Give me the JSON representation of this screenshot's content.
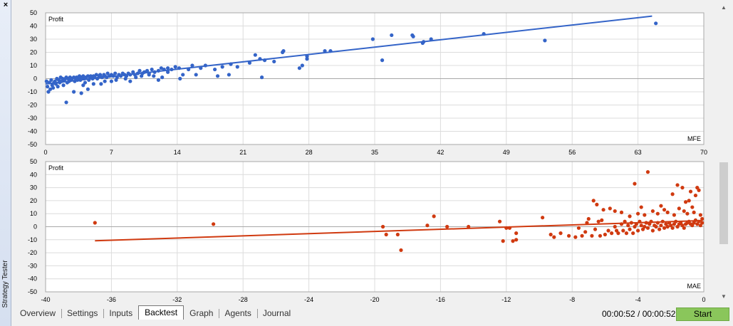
{
  "window": {
    "side_label": "Strategy Tester",
    "close_glyph": "×"
  },
  "tabs": [
    "Overview",
    "Settings",
    "Inputs",
    "Backtest",
    "Graph",
    "Agents",
    "Journal"
  ],
  "active_tab": "Backtest",
  "timer": "00:00:52 / 00:00:52",
  "start_label": "Start",
  "colors": {
    "mfe": "#3464c8",
    "mae": "#d03a10",
    "start": "#8ac65b"
  },
  "chart_data": [
    {
      "type": "scatter",
      "ylabel": "Profit",
      "xlabel": "MFE",
      "xlim": [
        0,
        70
      ],
      "ylim": [
        -50,
        50
      ],
      "xticks": [
        0,
        7,
        14,
        21,
        28,
        35,
        42,
        49,
        56,
        63,
        70
      ],
      "yticks": [
        50,
        40,
        30,
        20,
        10,
        0,
        -10,
        -20,
        -30,
        -40,
        -50
      ],
      "grid": true,
      "trend": [
        [
          0,
          -4
        ],
        [
          64.5,
          47.5
        ]
      ],
      "points": [
        [
          0.1,
          -2
        ],
        [
          0.2,
          -6
        ],
        [
          0.3,
          -10
        ],
        [
          0.4,
          -3
        ],
        [
          0.5,
          -8
        ],
        [
          0.6,
          -1
        ],
        [
          0.7,
          -5
        ],
        [
          0.8,
          -7
        ],
        [
          0.9,
          -3
        ],
        [
          1.0,
          -2
        ],
        [
          1.1,
          -4
        ],
        [
          1.2,
          0
        ],
        [
          1.3,
          -6
        ],
        [
          1.4,
          -1
        ],
        [
          1.5,
          -3
        ],
        [
          1.6,
          1
        ],
        [
          1.7,
          -2
        ],
        [
          1.8,
          0
        ],
        [
          1.9,
          -5
        ],
        [
          2.0,
          -1
        ],
        [
          2.1,
          0
        ],
        [
          2.2,
          1
        ],
        [
          2.3,
          -3
        ],
        [
          2.4,
          0
        ],
        [
          2.5,
          -2
        ],
        [
          2.6,
          1
        ],
        [
          2.7,
          -1
        ],
        [
          2.8,
          0
        ],
        [
          3.0,
          1
        ],
        [
          3.1,
          -2
        ],
        [
          3.2,
          0
        ],
        [
          3.3,
          1
        ],
        [
          3.4,
          -1
        ],
        [
          3.5,
          0
        ],
        [
          3.6,
          2
        ],
        [
          3.7,
          -1
        ],
        [
          3.8,
          1
        ],
        [
          3.9,
          0
        ],
        [
          4.0,
          2
        ],
        [
          4.1,
          0
        ],
        [
          4.2,
          -3
        ],
        [
          4.3,
          1
        ],
        [
          4.5,
          2
        ],
        [
          4.6,
          -1
        ],
        [
          4.7,
          1
        ],
        [
          4.8,
          2
        ],
        [
          5.0,
          0
        ],
        [
          5.1,
          2
        ],
        [
          5.2,
          1
        ],
        [
          5.4,
          3
        ],
        [
          5.5,
          0
        ],
        [
          5.7,
          2
        ],
        [
          5.8,
          3
        ],
        [
          6.0,
          1
        ],
        [
          6.2,
          3
        ],
        [
          6.3,
          2
        ],
        [
          6.5,
          1
        ],
        [
          6.6,
          4
        ],
        [
          6.8,
          2
        ],
        [
          7.0,
          3
        ],
        [
          7.2,
          2
        ],
        [
          7.4,
          4
        ],
        [
          7.6,
          1
        ],
        [
          7.8,
          3
        ],
        [
          8.0,
          2
        ],
        [
          8.2,
          4
        ],
        [
          8.4,
          3
        ],
        [
          8.6,
          2
        ],
        [
          8.8,
          4
        ],
        [
          9.0,
          3
        ],
        [
          9.3,
          5
        ],
        [
          9.5,
          3
        ],
        [
          9.8,
          4
        ],
        [
          10.0,
          6
        ],
        [
          10.3,
          4
        ],
        [
          10.5,
          5
        ],
        [
          10.8,
          6
        ],
        [
          11.0,
          4
        ],
        [
          11.3,
          7
        ],
        [
          11.6,
          5
        ],
        [
          12.0,
          6
        ],
        [
          12.3,
          8
        ],
        [
          12.6,
          7
        ],
        [
          13.0,
          8
        ],
        [
          13.4,
          7
        ],
        [
          13.8,
          9
        ],
        [
          14.2,
          8
        ],
        [
          2.2,
          -18
        ],
        [
          3.0,
          -10
        ],
        [
          3.8,
          -11
        ],
        [
          4.0,
          -5
        ],
        [
          4.5,
          -8
        ],
        [
          5.1,
          -4
        ],
        [
          5.9,
          -4
        ],
        [
          6.3,
          -2
        ],
        [
          7.0,
          -2
        ],
        [
          7.5,
          -1
        ],
        [
          8.5,
          0
        ],
        [
          9.0,
          -2
        ],
        [
          9.6,
          1
        ],
        [
          10.2,
          2
        ],
        [
          11.0,
          3
        ],
        [
          11.5,
          2
        ],
        [
          12.0,
          -1
        ],
        [
          12.4,
          1
        ],
        [
          13.0,
          5
        ],
        [
          14.3,
          0
        ],
        [
          14.6,
          3
        ],
        [
          15.2,
          7
        ],
        [
          15.6,
          10
        ],
        [
          16.0,
          3
        ],
        [
          16.5,
          8
        ],
        [
          17.0,
          10
        ],
        [
          18.0,
          7
        ],
        [
          18.3,
          2
        ],
        [
          18.8,
          9
        ],
        [
          19.5,
          3
        ],
        [
          19.7,
          11
        ],
        [
          20.4,
          9
        ],
        [
          21.7,
          12
        ],
        [
          22.3,
          18
        ],
        [
          22.8,
          15
        ],
        [
          23.3,
          14
        ],
        [
          23.0,
          1
        ],
        [
          24.3,
          13
        ],
        [
          25.2,
          20
        ],
        [
          25.3,
          21
        ],
        [
          27.0,
          8
        ],
        [
          27.3,
          10
        ],
        [
          27.8,
          17
        ],
        [
          27.8,
          15
        ],
        [
          29.7,
          21
        ],
        [
          30.3,
          21
        ],
        [
          34.8,
          30
        ],
        [
          35.8,
          14
        ],
        [
          36.8,
          33
        ],
        [
          39.0,
          33
        ],
        [
          39.1,
          32
        ],
        [
          40.1,
          27
        ],
        [
          40.2,
          28
        ],
        [
          41.0,
          30
        ],
        [
          46.6,
          34
        ],
        [
          53.1,
          29
        ],
        [
          64.9,
          42
        ]
      ]
    },
    {
      "type": "scatter",
      "ylabel": "Profit",
      "xlabel": "MAE",
      "xlim": [
        -40,
        0
      ],
      "ylim": [
        -50,
        50
      ],
      "xticks": [
        -40,
        -36,
        -32,
        -28,
        -24,
        -20,
        -16,
        -12,
        -8,
        -4,
        0
      ],
      "yticks": [
        50,
        40,
        30,
        20,
        10,
        0,
        -10,
        -20,
        -30,
        -40,
        -50
      ],
      "grid": true,
      "trend": [
        [
          -37,
          -10.8
        ],
        [
          -0.1,
          4.7
        ]
      ],
      "points": [
        [
          -37.0,
          3
        ],
        [
          -29.8,
          2
        ],
        [
          -19.5,
          0
        ],
        [
          -19.3,
          -6
        ],
        [
          -18.6,
          -6
        ],
        [
          -18.4,
          -18
        ],
        [
          -16.8,
          1
        ],
        [
          -16.4,
          8
        ],
        [
          -15.6,
          0
        ],
        [
          -14.3,
          0
        ],
        [
          -12.4,
          4
        ],
        [
          -12.2,
          -11
        ],
        [
          -12.0,
          -1
        ],
        [
          -11.8,
          -1
        ],
        [
          -11.6,
          -11
        ],
        [
          -11.4,
          -10
        ],
        [
          -11.4,
          -5
        ],
        [
          -9.8,
          7
        ],
        [
          -9.3,
          -6
        ],
        [
          -9.1,
          -8
        ],
        [
          -8.7,
          -5
        ],
        [
          -8.2,
          -7
        ],
        [
          -7.8,
          -8
        ],
        [
          -7.6,
          -1
        ],
        [
          -7.4,
          -7
        ],
        [
          -7.2,
          -4
        ],
        [
          -7.1,
          3
        ],
        [
          -7.0,
          6
        ],
        [
          -6.8,
          -7
        ],
        [
          -6.6,
          -2
        ],
        [
          -6.4,
          4
        ],
        [
          -6.3,
          -7
        ],
        [
          -6.2,
          5
        ],
        [
          -6.0,
          -6
        ],
        [
          -5.8,
          -3
        ],
        [
          -5.6,
          -5
        ],
        [
          -5.4,
          0
        ],
        [
          -5.3,
          -3
        ],
        [
          -5.2,
          -5
        ],
        [
          -5.0,
          2
        ],
        [
          -4.9,
          -3
        ],
        [
          -4.8,
          4
        ],
        [
          -4.7,
          -5
        ],
        [
          -4.6,
          1
        ],
        [
          -4.5,
          -2
        ],
        [
          -4.4,
          3
        ],
        [
          -4.3,
          -5
        ],
        [
          -4.2,
          0
        ],
        [
          -4.1,
          2
        ],
        [
          -4.0,
          -3
        ],
        [
          -3.9,
          4
        ],
        [
          -3.8,
          1
        ],
        [
          -3.7,
          -2
        ],
        [
          -3.6,
          0
        ],
        [
          -3.5,
          3
        ],
        [
          -3.4,
          -1
        ],
        [
          -3.3,
          2
        ],
        [
          -3.2,
          4
        ],
        [
          -3.1,
          -3
        ],
        [
          -3.0,
          1
        ],
        [
          -2.9,
          0
        ],
        [
          -2.8,
          3
        ],
        [
          -2.7,
          -2
        ],
        [
          -2.6,
          1
        ],
        [
          -2.5,
          4
        ],
        [
          -2.4,
          -1
        ],
        [
          -2.3,
          2
        ],
        [
          -2.2,
          0
        ],
        [
          -2.1,
          3
        ],
        [
          -2.0,
          1
        ],
        [
          -1.9,
          -1
        ],
        [
          -1.8,
          2
        ],
        [
          -1.7,
          4
        ],
        [
          -1.6,
          0
        ],
        [
          -1.5,
          2
        ],
        [
          -1.4,
          3
        ],
        [
          -1.3,
          1
        ],
        [
          -1.2,
          -1
        ],
        [
          -1.1,
          2
        ],
        [
          -1.0,
          3
        ],
        [
          -0.9,
          4
        ],
        [
          -0.8,
          2
        ],
        [
          -0.7,
          1
        ],
        [
          -0.6,
          3
        ],
        [
          -0.5,
          5
        ],
        [
          -0.4,
          2
        ],
        [
          -0.3,
          4
        ],
        [
          -0.2,
          1
        ],
        [
          -0.1,
          3
        ],
        [
          -6.7,
          20
        ],
        [
          -6.5,
          17
        ],
        [
          -6.1,
          13
        ],
        [
          -5.7,
          14
        ],
        [
          -5.4,
          12
        ],
        [
          -5.0,
          11
        ],
        [
          -4.5,
          8
        ],
        [
          -4.2,
          33
        ],
        [
          -4.0,
          10
        ],
        [
          -3.8,
          15
        ],
        [
          -3.6,
          9
        ],
        [
          -3.4,
          42
        ],
        [
          -3.1,
          12
        ],
        [
          -2.8,
          10
        ],
        [
          -2.6,
          16
        ],
        [
          -2.4,
          13
        ],
        [
          -2.2,
          11
        ],
        [
          -1.9,
          25
        ],
        [
          -1.8,
          9
        ],
        [
          -1.6,
          32
        ],
        [
          -1.5,
          14
        ],
        [
          -1.3,
          30
        ],
        [
          -1.2,
          12
        ],
        [
          -1.1,
          19
        ],
        [
          -1.0,
          10
        ],
        [
          -0.9,
          20
        ],
        [
          -0.8,
          27
        ],
        [
          -0.7,
          15
        ],
        [
          -0.6,
          11
        ],
        [
          -0.5,
          24
        ],
        [
          -0.4,
          30
        ],
        [
          -0.3,
          28
        ],
        [
          -0.2,
          9
        ],
        [
          -0.1,
          6
        ]
      ]
    }
  ]
}
